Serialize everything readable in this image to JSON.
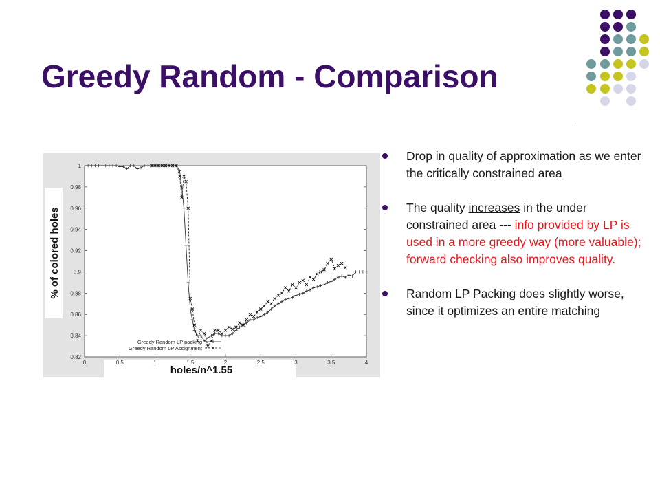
{
  "slide": {
    "title": "Greedy Random - Comparison",
    "bullets": [
      {
        "text": "Drop in quality of approximation as we enter the critically constrained area"
      },
      {
        "pre": "The quality ",
        "underlined": "increases",
        "mid": " in the under constrained area --- ",
        "red": "info provided by LP is used in a more greedy way (more valuable); forward checking also improves quality."
      },
      {
        "text": "Random LP Packing does slightly worse, since it optimizes an entire matching"
      }
    ],
    "colors": {
      "title": "#3b0f66",
      "bullet": "#3b0f66",
      "red": "#e8161c"
    },
    "decor_dot_colors": [
      "#3b0f66",
      "#6f9b9c",
      "#c6c41f",
      "#d6d6ea"
    ]
  },
  "chart_data": {
    "type": "line",
    "xlabel": "holes/n^1.55",
    "ylabel": "% of colored holes",
    "xlim": [
      0,
      4
    ],
    "ylim": [
      0.82,
      1.0
    ],
    "xticks": [
      "0",
      "0.5",
      "1",
      "1.5",
      "2",
      "2.5",
      "3",
      "3.5",
      "4"
    ],
    "yticks": [
      "0.82",
      "0.84",
      "0.86",
      "0.88",
      "0.9",
      "0.92",
      "0.94",
      "0.96",
      "0.98",
      "1"
    ],
    "legend_position": "bottom-left",
    "grid": false,
    "series": [
      {
        "name": "Greedy Random LP packing",
        "marker": "+",
        "points": [
          [
            0.05,
            1.0
          ],
          [
            0.1,
            1.0
          ],
          [
            0.15,
            1.0
          ],
          [
            0.2,
            1.0
          ],
          [
            0.25,
            1.0
          ],
          [
            0.3,
            1.0
          ],
          [
            0.35,
            1.0
          ],
          [
            0.4,
            1.0
          ],
          [
            0.45,
            1.0
          ],
          [
            0.5,
            0.999
          ],
          [
            0.55,
            0.999
          ],
          [
            0.6,
            0.997
          ],
          [
            0.65,
            1.0
          ],
          [
            0.7,
            1.0
          ],
          [
            0.75,
            0.997
          ],
          [
            0.8,
            0.998
          ],
          [
            0.85,
            1.0
          ],
          [
            0.9,
            1.0
          ],
          [
            0.95,
            1.0
          ],
          [
            1.0,
            1.0
          ],
          [
            1.05,
            1.0
          ],
          [
            1.1,
            1.0
          ],
          [
            1.15,
            1.0
          ],
          [
            1.2,
            1.0
          ],
          [
            1.25,
            1.0
          ],
          [
            1.3,
            1.0
          ],
          [
            1.35,
            0.995
          ],
          [
            1.38,
            0.98
          ],
          [
            1.41,
            0.96
          ],
          [
            1.44,
            0.925
          ],
          [
            1.47,
            0.89
          ],
          [
            1.5,
            0.865
          ],
          [
            1.53,
            0.855
          ],
          [
            1.56,
            0.845
          ],
          [
            1.6,
            0.84
          ],
          [
            1.65,
            0.84
          ],
          [
            1.7,
            0.835
          ],
          [
            1.75,
            0.838
          ],
          [
            1.8,
            0.84
          ],
          [
            1.85,
            0.842
          ],
          [
            1.9,
            0.842
          ],
          [
            1.95,
            0.84
          ],
          [
            2.0,
            0.84
          ],
          [
            2.05,
            0.84
          ],
          [
            2.1,
            0.842
          ],
          [
            2.15,
            0.845
          ],
          [
            2.2,
            0.848
          ],
          [
            2.25,
            0.85
          ],
          [
            2.3,
            0.852
          ],
          [
            2.35,
            0.855
          ],
          [
            2.4,
            0.855
          ],
          [
            2.45,
            0.857
          ],
          [
            2.5,
            0.858
          ],
          [
            2.55,
            0.86
          ],
          [
            2.6,
            0.862
          ],
          [
            2.65,
            0.865
          ],
          [
            2.7,
            0.868
          ],
          [
            2.75,
            0.87
          ],
          [
            2.8,
            0.872
          ],
          [
            2.85,
            0.874
          ],
          [
            2.9,
            0.875
          ],
          [
            2.95,
            0.876
          ],
          [
            3.0,
            0.878
          ],
          [
            3.05,
            0.879
          ],
          [
            3.1,
            0.88
          ],
          [
            3.15,
            0.882
          ],
          [
            3.2,
            0.883
          ],
          [
            3.25,
            0.885
          ],
          [
            3.3,
            0.886
          ],
          [
            3.35,
            0.887
          ],
          [
            3.4,
            0.888
          ],
          [
            3.45,
            0.89
          ],
          [
            3.5,
            0.891
          ],
          [
            3.55,
            0.893
          ],
          [
            3.6,
            0.895
          ],
          [
            3.65,
            0.896
          ],
          [
            3.7,
            0.895
          ],
          [
            3.75,
            0.897
          ],
          [
            3.8,
            0.896
          ],
          [
            3.85,
            0.9
          ],
          [
            3.9,
            0.9
          ],
          [
            3.95,
            0.9
          ],
          [
            4.0,
            0.9
          ]
        ]
      },
      {
        "name": "Greedy Random LP Assignment",
        "marker": "x",
        "points": [
          [
            0.95,
            1.0
          ],
          [
            1.0,
            1.0
          ],
          [
            1.05,
            1.0
          ],
          [
            1.1,
            1.0
          ],
          [
            1.15,
            1.0
          ],
          [
            1.2,
            1.0
          ],
          [
            1.25,
            1.0
          ],
          [
            1.3,
            1.0
          ],
          [
            1.35,
            0.99
          ],
          [
            1.38,
            0.97
          ],
          [
            1.41,
            0.99
          ],
          [
            1.44,
            0.985
          ],
          [
            1.47,
            0.96
          ],
          [
            1.5,
            0.875
          ],
          [
            1.53,
            0.865
          ],
          [
            1.56,
            0.85
          ],
          [
            1.6,
            0.835
          ],
          [
            1.65,
            0.845
          ],
          [
            1.7,
            0.842
          ],
          [
            1.75,
            0.83
          ],
          [
            1.8,
            0.835
          ],
          [
            1.85,
            0.845
          ],
          [
            1.9,
            0.845
          ],
          [
            1.95,
            0.842
          ],
          [
            2.0,
            0.845
          ],
          [
            2.05,
            0.848
          ],
          [
            2.1,
            0.846
          ],
          [
            2.15,
            0.848
          ],
          [
            2.2,
            0.852
          ],
          [
            2.25,
            0.85
          ],
          [
            2.3,
            0.855
          ],
          [
            2.35,
            0.86
          ],
          [
            2.4,
            0.858
          ],
          [
            2.45,
            0.862
          ],
          [
            2.5,
            0.865
          ],
          [
            2.55,
            0.868
          ],
          [
            2.6,
            0.872
          ],
          [
            2.65,
            0.87
          ],
          [
            2.7,
            0.875
          ],
          [
            2.75,
            0.878
          ],
          [
            2.8,
            0.88
          ],
          [
            2.85,
            0.885
          ],
          [
            2.9,
            0.882
          ],
          [
            2.95,
            0.888
          ],
          [
            3.0,
            0.885
          ],
          [
            3.05,
            0.89
          ],
          [
            3.1,
            0.892
          ],
          [
            3.15,
            0.888
          ],
          [
            3.2,
            0.895
          ],
          [
            3.25,
            0.893
          ],
          [
            3.3,
            0.898
          ],
          [
            3.35,
            0.9
          ],
          [
            3.4,
            0.902
          ],
          [
            3.45,
            0.908
          ],
          [
            3.5,
            0.912
          ],
          [
            3.55,
            0.903
          ],
          [
            3.6,
            0.906
          ],
          [
            3.65,
            0.908
          ],
          [
            3.7,
            0.904
          ]
        ]
      }
    ]
  }
}
